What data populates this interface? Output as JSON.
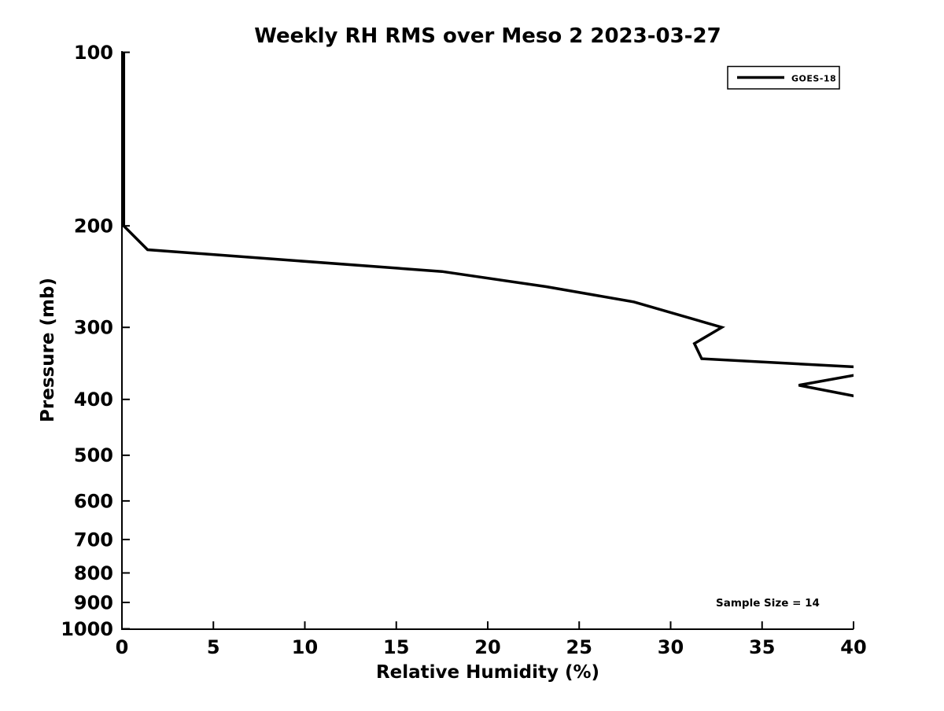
{
  "figure": {
    "title": "Weekly RH RMS over Meso 2 2023-03-27",
    "xlabel": "Relative Humidity (%)",
    "ylabel": "Pressure (mb)",
    "annotation": "Sample Size = 14",
    "legend": {
      "position": "upper right",
      "entries": [
        {
          "label": "GOES-18",
          "color": "#000000"
        }
      ]
    },
    "colors": {
      "line": "#000000",
      "background": "#ffffff",
      "text": "#000000"
    }
  },
  "chart_data": {
    "type": "line",
    "title": "Weekly RH RMS over Meso 2 2023-03-27",
    "xlabel": "Relative Humidity (%)",
    "ylabel": "Pressure (mb)",
    "xlim": [
      0,
      40
    ],
    "ylim": [
      100,
      1000
    ],
    "y_scale": "log",
    "y_inverted": true,
    "grid": false,
    "x_ticks": [
      0,
      5,
      10,
      15,
      20,
      25,
      30,
      35,
      40
    ],
    "y_ticks": [
      100,
      200,
      300,
      400,
      500,
      600,
      700,
      800,
      900,
      1000
    ],
    "legend_position": "upper right",
    "clip_to_axes": true,
    "series": [
      {
        "name": "GOES-18",
        "color": "#000000",
        "points_format": "[relative_humidity_pct, pressure_mb]",
        "points": [
          [
            0.1,
            100
          ],
          [
            0.1,
            200
          ],
          [
            1.4,
            220
          ],
          [
            17.5,
            240
          ],
          [
            23.2,
            255
          ],
          [
            28.0,
            271
          ],
          [
            32.8,
            300
          ],
          [
            31.3,
            320
          ],
          [
            31.7,
            340
          ],
          [
            42.0,
            354
          ],
          [
            37.0,
            378
          ],
          [
            41.0,
            400
          ]
        ]
      }
    ],
    "annotation": {
      "text": "Sample Size = 14",
      "x": 32.5,
      "y": 900
    }
  }
}
